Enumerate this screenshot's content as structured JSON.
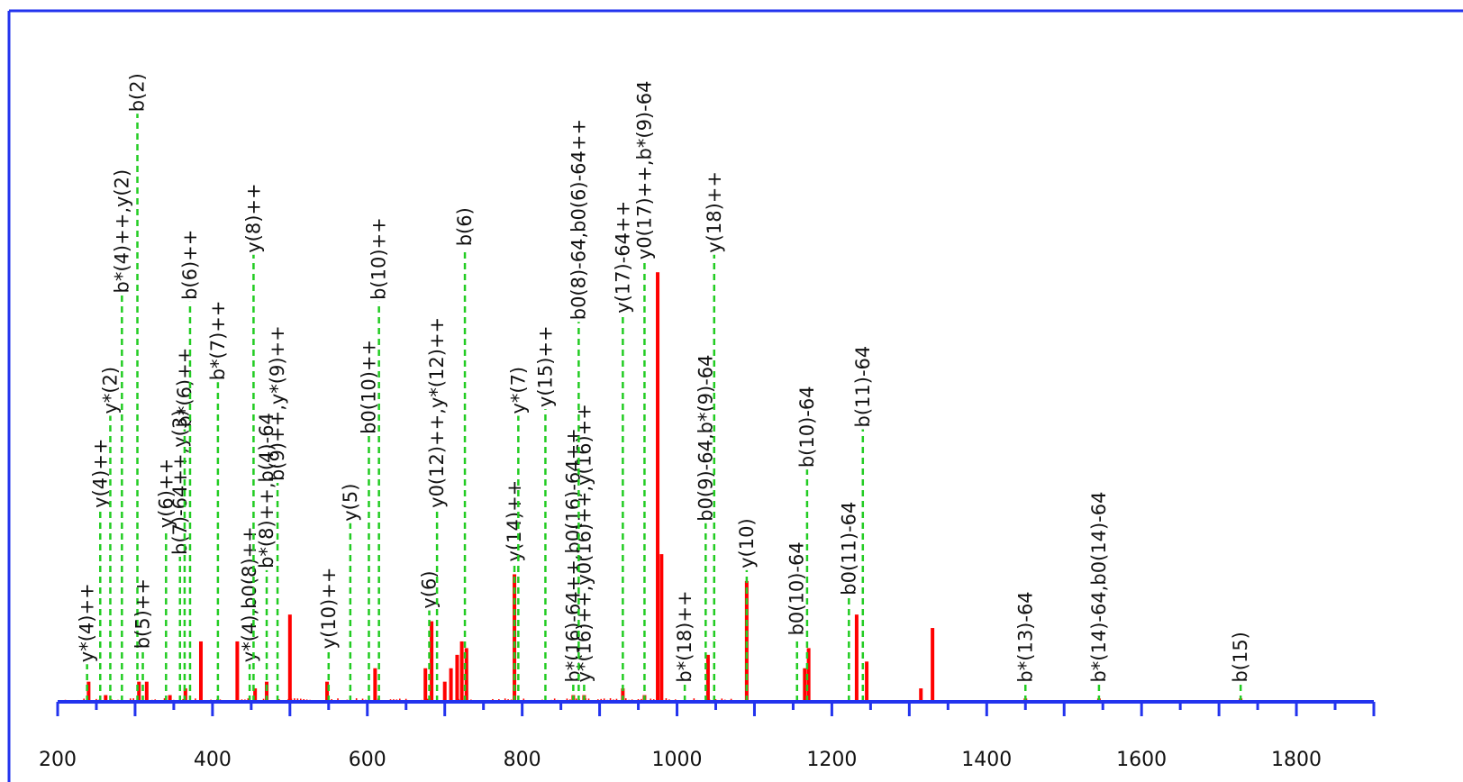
{
  "chart_data": {
    "type": "bar",
    "subtype": "mass-spectrum",
    "title": "",
    "xlabel": "",
    "ylabel": "",
    "xlim": [
      200,
      1900
    ],
    "ylim": [
      0,
      100
    ],
    "x_ticks": [
      200,
      400,
      600,
      800,
      1000,
      1200,
      1400,
      1600,
      1800
    ],
    "x_tick_labels": [
      "200",
      "400",
      "600",
      "800",
      "1000",
      "1200",
      "1400",
      "1600",
      "1800"
    ],
    "colors": {
      "peaks": "#ff0000",
      "annotation_line": "#22cc22",
      "axis": "#2233ee",
      "label": "#111111"
    },
    "grid": false,
    "legend": "none",
    "series": [
      {
        "values": [
          {
            "x": 240,
            "y": 3
          },
          {
            "x": 262,
            "y": 1
          },
          {
            "x": 305,
            "y": 3
          },
          {
            "x": 315,
            "y": 3
          },
          {
            "x": 345,
            "y": 1
          },
          {
            "x": 365,
            "y": 2
          },
          {
            "x": 385,
            "y": 9
          },
          {
            "x": 432,
            "y": 9
          },
          {
            "x": 455,
            "y": 2
          },
          {
            "x": 470,
            "y": 3
          },
          {
            "x": 500,
            "y": 13
          },
          {
            "x": 548,
            "y": 3
          },
          {
            "x": 610,
            "y": 5
          },
          {
            "x": 675,
            "y": 5
          },
          {
            "x": 683,
            "y": 12
          },
          {
            "x": 700,
            "y": 3
          },
          {
            "x": 708,
            "y": 5
          },
          {
            "x": 716,
            "y": 7
          },
          {
            "x": 722,
            "y": 9
          },
          {
            "x": 728,
            "y": 8
          },
          {
            "x": 790,
            "y": 19
          },
          {
            "x": 866,
            "y": 1
          },
          {
            "x": 880,
            "y": 1
          },
          {
            "x": 930,
            "y": 2
          },
          {
            "x": 958,
            "y": 1
          },
          {
            "x": 975,
            "y": 64
          },
          {
            "x": 980,
            "y": 22
          },
          {
            "x": 1040,
            "y": 7
          },
          {
            "x": 1090,
            "y": 18
          },
          {
            "x": 1165,
            "y": 5
          },
          {
            "x": 1170,
            "y": 8
          },
          {
            "x": 1232,
            "y": 13
          },
          {
            "x": 1245,
            "y": 6
          },
          {
            "x": 1315,
            "y": 2
          },
          {
            "x": 1330,
            "y": 11
          },
          {
            "x": 1450,
            "y": 0.5
          },
          {
            "x": 1545,
            "y": 0.5
          },
          {
            "x": 1728,
            "y": 0.5
          }
        ]
      }
    ],
    "annotations": [
      {
        "label": "y*(4)++",
        "x": 238,
        "level": 4
      },
      {
        "label": "y(4)++",
        "x": 255,
        "level": 27
      },
      {
        "label": "y*(2)",
        "x": 268,
        "level": 41
      },
      {
        "label": "b*(4)++,y(2)",
        "x": 283,
        "level": 59
      },
      {
        "label": "b(2)",
        "x": 303,
        "level": 86
      },
      {
        "label": "b(5)++",
        "x": 310,
        "level": 6
      },
      {
        "label": "y(6)++",
        "x": 340,
        "level": 24
      },
      {
        "label": "b(7)-64++,y(3)",
        "x": 358,
        "level": 20
      },
      {
        "label": "b*(6)++",
        "x": 364,
        "level": 39
      },
      {
        "label": "b(6)++",
        "x": 371,
        "level": 58
      },
      {
        "label": "b*(7)++",
        "x": 407,
        "level": 46
      },
      {
        "label": "y*(4),b0(8)++",
        "x": 448,
        "level": 4
      },
      {
        "label": "y(8)++",
        "x": 453,
        "level": 65
      },
      {
        "label": "b*(8)++,b(4)-64",
        "x": 470,
        "level": 18
      },
      {
        "label": "b(9)++,y*(9)++",
        "x": 484,
        "level": 31
      },
      {
        "label": "y(10)++",
        "x": 550,
        "level": 6
      },
      {
        "label": "y(5)",
        "x": 578,
        "level": 25
      },
      {
        "label": "b0(10)++",
        "x": 602,
        "level": 38
      },
      {
        "label": "b(10)++",
        "x": 615,
        "level": 58
      },
      {
        "label": "y(6)",
        "x": 680,
        "level": 12
      },
      {
        "label": "y0(12)++,y*(12)++",
        "x": 690,
        "level": 27
      },
      {
        "label": "b(6)",
        "x": 726,
        "level": 66
      },
      {
        "label": "y(14)++",
        "x": 790,
        "level": 19
      },
      {
        "label": "y*(7)",
        "x": 795,
        "level": 41
      },
      {
        "label": "y(15)++",
        "x": 830,
        "level": 42
      },
      {
        "label": "b*(16)-64++,b0(16)-64++",
        "x": 866,
        "level": 1
      },
      {
        "label": "y*(16)++,y0(16)++,y(16)++",
        "x": 880,
        "level": 1
      },
      {
        "label": "b0(8)-64,b0(6)-64++",
        "x": 873,
        "level": 55
      },
      {
        "label": "y(17)-64++",
        "x": 930,
        "level": 56
      },
      {
        "label": "y0(17)++,b*(9)-64",
        "x": 958,
        "level": 64
      },
      {
        "label": "b*(18)++",
        "x": 1010,
        "level": 1
      },
      {
        "label": "b0(9)-64,b*(9)-64",
        "x": 1037,
        "level": 25
      },
      {
        "label": "y(18)++",
        "x": 1048,
        "level": 65
      },
      {
        "label": "y(10)",
        "x": 1090,
        "level": 18
      },
      {
        "label": "b0(10)-64",
        "x": 1155,
        "level": 8
      },
      {
        "label": "b(10)-64",
        "x": 1168,
        "level": 33
      },
      {
        "label": "b0(11)-64",
        "x": 1222,
        "level": 14
      },
      {
        "label": "b(11)-64",
        "x": 1240,
        "level": 39
      },
      {
        "label": "b*(13)-64",
        "x": 1450,
        "level": 1
      },
      {
        "label": "b*(14)-64,b0(14)-64",
        "x": 1545,
        "level": 1
      },
      {
        "label": "b(15)",
        "x": 1728,
        "level": 1
      }
    ]
  }
}
